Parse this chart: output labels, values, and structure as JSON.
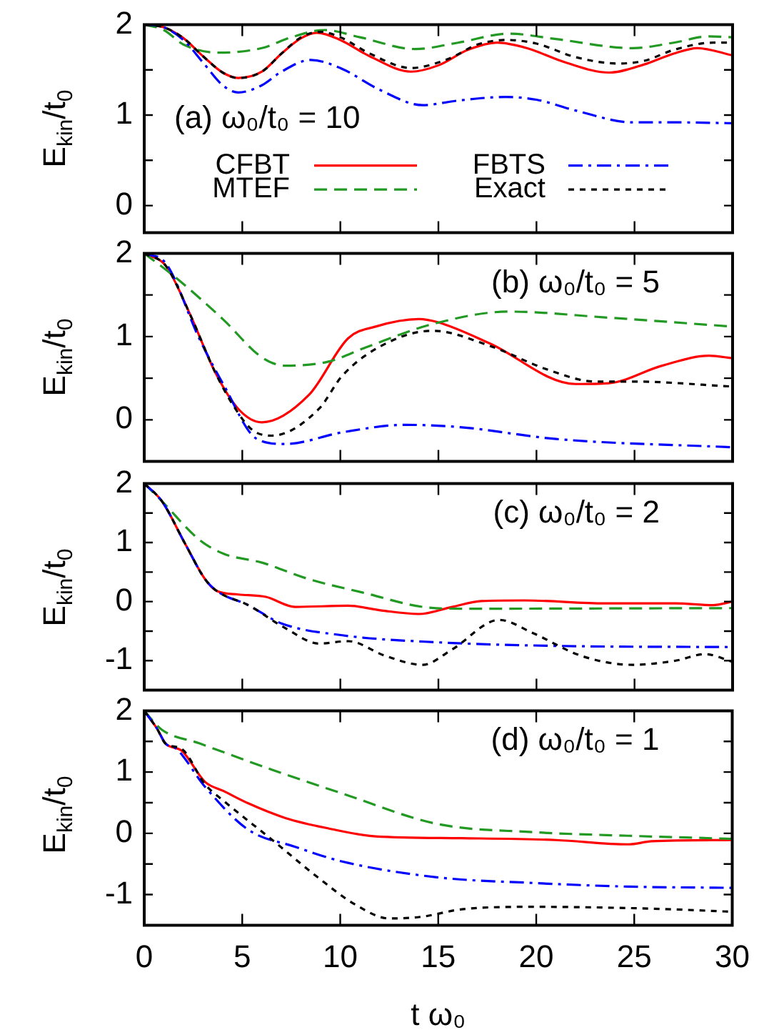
{
  "chart_data": [
    {
      "type": "line",
      "ylabel": "E$_{kin}$/t$_{0}$",
      "annotations": [
        "(a) ω₀/t₀ = 10"
      ],
      "xlim": [
        0,
        30
      ],
      "xticks": [
        0,
        5,
        10,
        15,
        20,
        25,
        30
      ],
      "ylim": [
        -0.3,
        2
      ],
      "yticks": [
        0,
        {
          "value": 0.5,
          "label": null
        },
        1,
        {
          "value": 1.5,
          "label": null
        },
        2
      ],
      "tick_labels": "y",
      "legend": "bottom left",
      "grid": false,
      "series": [
        {
          "name": "CFBT",
          "color": "#ff0000",
          "line_style": "solid",
          "x": [
            0,
            1,
            2,
            3,
            4,
            4.8,
            6,
            7,
            8,
            8.8,
            10,
            11.5,
            13.6,
            15,
            16.5,
            18,
            19.5,
            21.5,
            23.7,
            25.5,
            27,
            28.2,
            30
          ],
          "values": [
            2,
            1.97,
            1.85,
            1.65,
            1.47,
            1.41,
            1.48,
            1.68,
            1.85,
            1.91,
            1.83,
            1.65,
            1.48,
            1.55,
            1.72,
            1.8,
            1.74,
            1.58,
            1.47,
            1.56,
            1.68,
            1.74,
            1.66
          ]
        },
        {
          "name": "FBTS",
          "color": "#0000ff",
          "line_style": "dashdot",
          "x": [
            0,
            1,
            2,
            3,
            4,
            4.8,
            6,
            7,
            8.5,
            10,
            12,
            14.2,
            16,
            18.4,
            20,
            22,
            24.9,
            27,
            30
          ],
          "values": [
            2,
            1.97,
            1.83,
            1.58,
            1.33,
            1.25,
            1.33,
            1.48,
            1.61,
            1.52,
            1.28,
            1.11,
            1.16,
            1.2,
            1.17,
            1.05,
            0.92,
            0.92,
            0.91
          ]
        },
        {
          "name": "MTEF",
          "color": "#229922",
          "line_style": "dashed",
          "x": [
            0,
            1,
            2,
            3.8,
            6,
            7.5,
            9.2,
            11,
            13.8,
            16,
            18.6,
            21,
            24.9,
            27,
            28.8,
            30
          ],
          "values": [
            2,
            1.94,
            1.78,
            1.69,
            1.74,
            1.86,
            1.94,
            1.86,
            1.73,
            1.8,
            1.9,
            1.84,
            1.74,
            1.8,
            1.87,
            1.86
          ]
        },
        {
          "name": "Exact",
          "color": "#000000",
          "line_style": "dotted",
          "x": [
            0,
            1,
            2,
            3,
            4,
            4.8,
            6,
            7,
            8,
            9,
            10,
            11.5,
            13.6,
            15.5,
            17,
            18.5,
            20,
            22,
            24.2,
            25.5,
            27,
            29,
            30
          ],
          "values": [
            2,
            1.97,
            1.85,
            1.65,
            1.47,
            1.41,
            1.48,
            1.68,
            1.86,
            1.92,
            1.86,
            1.68,
            1.52,
            1.62,
            1.78,
            1.83,
            1.79,
            1.64,
            1.57,
            1.6,
            1.72,
            1.8,
            1.8
          ]
        }
      ]
    },
    {
      "type": "line",
      "ylabel": "E$_{kin}$/t$_{0}$",
      "annotations": [
        "(b) ω₀/t₀ = 5"
      ],
      "xlim": [
        0,
        30
      ],
      "xticks": [
        0,
        5,
        10,
        15,
        20,
        25,
        30
      ],
      "ylim": [
        -0.5,
        2
      ],
      "yticks": [
        0,
        {
          "value": 0.5,
          "label": null
        },
        1,
        {
          "value": 1.5,
          "label": null
        },
        2
      ],
      "tick_labels": "y",
      "grid": false,
      "series": [
        {
          "color": "#ff0000",
          "line_style": "solid",
          "x": [
            0,
            1.1,
            2.35,
            3.6,
            4.8,
            6,
            8.4,
            10.4,
            11.8,
            14,
            15,
            17.6,
            22,
            23.7,
            26.4,
            28.8,
            30
          ],
          "values": [
            2,
            1.85,
            1.26,
            0.58,
            0.13,
            -0.03,
            0.3,
            0.98,
            1.12,
            1.21,
            1.17,
            0.92,
            0.43,
            0.44,
            0.65,
            0.77,
            0.74
          ]
        },
        {
          "color": "#0000ff",
          "line_style": "dashdot",
          "x": [
            0,
            1.1,
            2.8,
            4.05,
            5.75,
            7.2,
            10.1,
            13.3,
            16.2,
            21,
            30
          ],
          "values": [
            2,
            1.88,
            0.98,
            0.42,
            -0.23,
            -0.29,
            -0.15,
            -0.06,
            -0.09,
            -0.23,
            -0.33
          ]
        },
        {
          "color": "#229922",
          "line_style": "dashed",
          "x": [
            0,
            1.6,
            4.05,
            6,
            7.2,
            9.4,
            11.3,
            14.7,
            18.6,
            23.5,
            30
          ],
          "values": [
            2,
            1.71,
            1.2,
            0.75,
            0.65,
            0.7,
            0.87,
            1.15,
            1.3,
            1.23,
            1.12
          ]
        },
        {
          "color": "#000000",
          "line_style": "dotted",
          "x": [
            0,
            1.1,
            2.35,
            3.6,
            4.6,
            5.5,
            6.5,
            8.9,
            10.1,
            12.1,
            14.7,
            17.6,
            20.6,
            23,
            24.9,
            30
          ],
          "values": [
            2,
            1.85,
            1.26,
            0.58,
            0.15,
            -0.12,
            -0.19,
            0.13,
            0.53,
            0.89,
            1.07,
            0.89,
            0.6,
            0.46,
            0.46,
            0.4
          ]
        }
      ]
    },
    {
      "type": "line",
      "ylabel": "E$_{kin}$/t$_{0}$",
      "annotations": [
        "(c) ω₀/t₀ = 2"
      ],
      "xlim": [
        0,
        30
      ],
      "xticks": [
        0,
        5,
        10,
        15,
        20,
        25,
        30
      ],
      "ylim": [
        -1.5,
        2
      ],
      "yticks": [
        -1,
        {
          "value": -0.5,
          "label": null
        },
        0,
        {
          "value": 0.5,
          "label": null
        },
        1,
        {
          "value": 1.5,
          "label": null
        },
        2
      ],
      "tick_labels": "y",
      "grid": false,
      "series": [
        {
          "color": "#ff0000",
          "line_style": "solid",
          "x": [
            0,
            0.9,
            2.1,
            3.1,
            3.7,
            4.8,
            6.2,
            7.7,
            10.4,
            12.1,
            14,
            15.7,
            17.2,
            19.4,
            23.5,
            27.1,
            29,
            30
          ],
          "values": [
            2,
            1.7,
            0.97,
            0.38,
            0.18,
            0.12,
            0.08,
            -0.09,
            -0.07,
            -0.15,
            -0.21,
            -0.09,
            0.01,
            0.02,
            -0.03,
            -0.03,
            -0.06,
            0
          ]
        },
        {
          "color": "#0000ff",
          "line_style": "dashdot",
          "x": [
            0,
            0.9,
            2.1,
            3.1,
            3.7,
            5.3,
            7,
            10.1,
            15,
            21,
            30
          ],
          "values": [
            2,
            1.7,
            0.97,
            0.38,
            0.18,
            -0.06,
            -0.37,
            -0.57,
            -0.69,
            -0.75,
            -0.77
          ]
        },
        {
          "color": "#229922",
          "line_style": "dashed",
          "x": [
            0,
            0.9,
            2.8,
            4.05,
            6,
            8.4,
            11.3,
            14.2,
            16.2,
            30
          ],
          "values": [
            2,
            1.7,
            1.05,
            0.81,
            0.66,
            0.38,
            0.14,
            -0.09,
            -0.12,
            -0.11
          ]
        },
        {
          "color": "#000000",
          "line_style": "dotted",
          "x": [
            0,
            0.9,
            2.1,
            3.1,
            3.7,
            5.3,
            7.2,
            8.9,
            10.4,
            12.3,
            14.2,
            15.7,
            18.1,
            19.8,
            22.3,
            24.9,
            27.1,
            28.6,
            30
          ],
          "values": [
            2,
            1.7,
            0.97,
            0.38,
            0.18,
            -0.06,
            -0.45,
            -0.71,
            -0.67,
            -0.92,
            -1.07,
            -0.81,
            -0.31,
            -0.53,
            -0.92,
            -1.07,
            -1,
            -0.89,
            -1.02
          ]
        }
      ]
    },
    {
      "type": "line",
      "xlabel": "t ω₀",
      "ylabel": "E$_{kin}$/t$_{0}$",
      "annotations": [
        "(d) ω₀/t₀ = 1"
      ],
      "xlim": [
        0,
        30
      ],
      "xticks": [
        0,
        5,
        10,
        15,
        20,
        25,
        30
      ],
      "ylim": [
        -1.5,
        2
      ],
      "yticks": [
        -1,
        {
          "value": -0.5,
          "label": null
        },
        0,
        {
          "value": 0.5,
          "label": null
        },
        1,
        {
          "value": 1.5,
          "label": null
        },
        2
      ],
      "grid": false,
      "series": [
        {
          "color": "#ff0000",
          "line_style": "solid",
          "x": [
            0,
            0.65,
            1.1,
            1.9,
            3.1,
            4.05,
            5.3,
            7.2,
            9.4,
            11.8,
            16.2,
            21,
            24.7,
            25.9,
            30
          ],
          "values": [
            2,
            1.71,
            1.46,
            1.35,
            0.84,
            0.69,
            0.49,
            0.25,
            0.08,
            -0.05,
            -0.08,
            -0.11,
            -0.18,
            -0.13,
            -0.11
          ]
        },
        {
          "color": "#0000ff",
          "line_style": "dashdot",
          "x": [
            0,
            0.65,
            1.1,
            1.6,
            3.1,
            5.3,
            7.7,
            10.1,
            15,
            19.8,
            24.7,
            30
          ],
          "values": [
            2,
            1.71,
            1.46,
            1.39,
            0.76,
            0.06,
            -0.22,
            -0.46,
            -0.72,
            -0.81,
            -0.87,
            -0.89
          ]
        },
        {
          "color": "#229922",
          "line_style": "dashed",
          "x": [
            0,
            0.9,
            2.8,
            6.5,
            10.1,
            15,
            19.8,
            24.7,
            30
          ],
          "values": [
            2,
            1.69,
            1.47,
            1.04,
            0.65,
            0.15,
            0.02,
            -0.04,
            -0.09
          ]
        },
        {
          "color": "#000000",
          "line_style": "dotted",
          "x": [
            0,
            0.65,
            1.1,
            1.9,
            3.1,
            4.05,
            6.5,
            8.9,
            10.8,
            12.5,
            14.2,
            16.2,
            19.8,
            25.9,
            30
          ],
          "values": [
            2,
            1.71,
            1.46,
            1.38,
            0.8,
            0.53,
            -0.1,
            -0.73,
            -1.17,
            -1.39,
            -1.36,
            -1.24,
            -1.2,
            -1.23,
            -1.28
          ]
        }
      ]
    }
  ]
}
